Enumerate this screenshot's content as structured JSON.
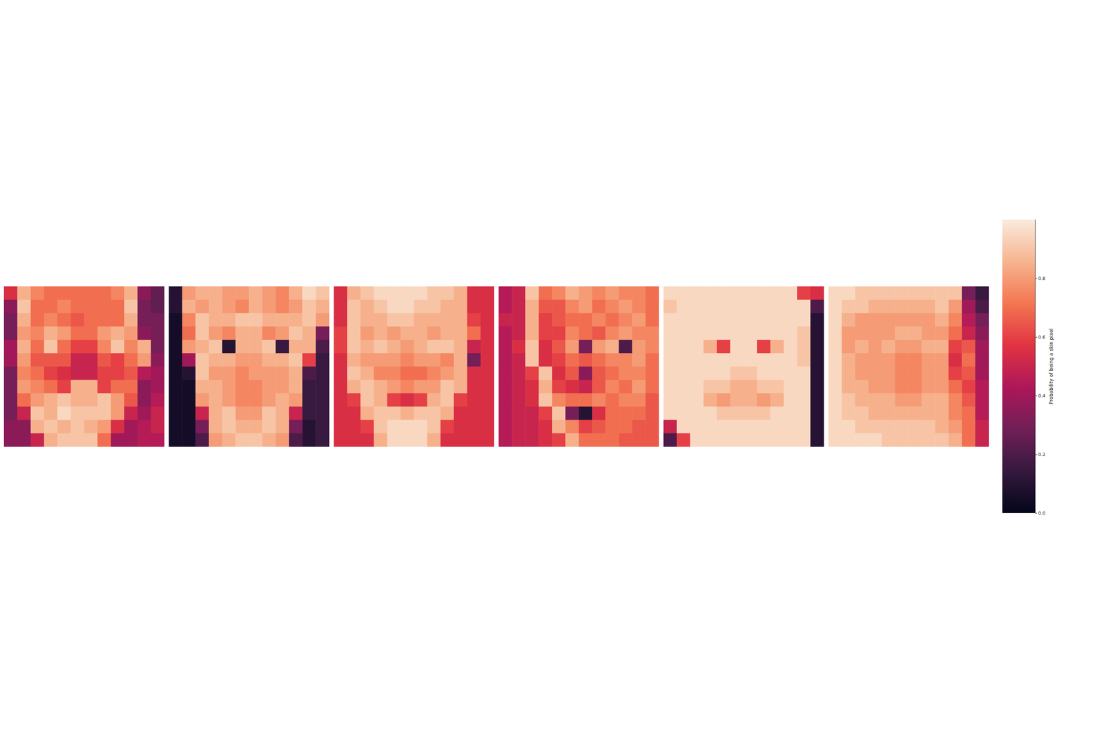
{
  "chart_data": {
    "type": "heatmap",
    "tick_labels": false,
    "heatmaps": [
      {
        "cells": [
          [
            0.55,
            0.85,
            0.75,
            0.7,
            0.7,
            0.7,
            0.7,
            0.7,
            0.75,
            0.85,
            0.35,
            0.25
          ],
          [
            0.35,
            0.9,
            0.7,
            0.7,
            0.75,
            0.7,
            0.7,
            0.7,
            0.7,
            0.9,
            0.3,
            0.25
          ],
          [
            0.3,
            0.85,
            0.7,
            0.75,
            0.7,
            0.65,
            0.7,
            0.7,
            0.7,
            0.85,
            0.3,
            0.3
          ],
          [
            0.3,
            0.8,
            0.75,
            0.85,
            0.8,
            0.7,
            0.7,
            0.8,
            0.85,
            0.8,
            0.35,
            0.3
          ],
          [
            0.4,
            0.85,
            0.7,
            0.9,
            0.7,
            0.6,
            0.6,
            0.75,
            0.9,
            0.75,
            0.85,
            0.3
          ],
          [
            0.4,
            0.8,
            0.65,
            0.65,
            0.65,
            0.5,
            0.5,
            0.65,
            0.6,
            0.7,
            0.8,
            0.35
          ],
          [
            0.3,
            0.75,
            0.7,
            0.6,
            0.55,
            0.5,
            0.5,
            0.6,
            0.6,
            0.65,
            0.45,
            0.4
          ],
          [
            0.3,
            0.8,
            0.75,
            0.7,
            0.6,
            0.85,
            0.85,
            0.6,
            0.7,
            0.7,
            0.35,
            0.4
          ],
          [
            0.3,
            0.7,
            0.8,
            0.85,
            0.9,
            0.85,
            0.85,
            0.9,
            0.8,
            0.65,
            0.35,
            0.45
          ],
          [
            0.3,
            0.5,
            0.9,
            0.85,
            0.95,
            0.9,
            0.9,
            0.9,
            0.8,
            0.5,
            0.4,
            0.5
          ],
          [
            0.35,
            0.35,
            0.85,
            0.9,
            0.85,
            0.9,
            0.85,
            0.8,
            0.55,
            0.4,
            0.45,
            0.5
          ],
          [
            0.35,
            0.35,
            0.5,
            0.85,
            0.9,
            0.9,
            0.9,
            0.7,
            0.4,
            0.4,
            0.45,
            0.45
          ]
        ]
      },
      {
        "cells": [
          [
            0.1,
            0.8,
            0.85,
            0.85,
            0.8,
            0.8,
            0.85,
            0.8,
            0.75,
            0.85,
            0.95,
            0.9
          ],
          [
            0.1,
            0.85,
            0.8,
            0.85,
            0.8,
            0.75,
            0.85,
            0.8,
            0.75,
            0.8,
            0.9,
            0.85
          ],
          [
            0.05,
            0.75,
            0.9,
            0.85,
            0.85,
            0.9,
            0.9,
            0.85,
            0.85,
            0.85,
            0.9,
            0.8
          ],
          [
            0.05,
            0.7,
            0.9,
            0.8,
            0.75,
            0.85,
            0.85,
            0.75,
            0.8,
            0.9,
            0.85,
            0.3
          ],
          [
            0.05,
            0.8,
            0.85,
            0.9,
            0.1,
            0.85,
            0.85,
            0.9,
            0.15,
            0.85,
            0.85,
            0.2
          ],
          [
            0.05,
            0.4,
            0.9,
            0.85,
            0.85,
            0.8,
            0.8,
            0.85,
            0.85,
            0.9,
            0.6,
            0.15
          ],
          [
            0.05,
            0.1,
            0.9,
            0.8,
            0.8,
            0.75,
            0.8,
            0.8,
            0.8,
            0.85,
            0.2,
            0.15
          ],
          [
            0.05,
            0.05,
            0.85,
            0.85,
            0.8,
            0.75,
            0.75,
            0.8,
            0.8,
            0.85,
            0.15,
            0.15
          ],
          [
            0.05,
            0.05,
            0.8,
            0.85,
            0.8,
            0.75,
            0.75,
            0.8,
            0.85,
            0.8,
            0.15,
            0.15
          ],
          [
            0.05,
            0.05,
            0.5,
            0.85,
            0.9,
            0.8,
            0.8,
            0.9,
            0.85,
            0.5,
            0.15,
            0.15
          ],
          [
            0.05,
            0.05,
            0.3,
            0.85,
            0.9,
            0.85,
            0.85,
            0.9,
            0.85,
            0.3,
            0.1,
            0.15
          ],
          [
            0.05,
            0.05,
            0.2,
            0.8,
            0.85,
            0.9,
            0.9,
            0.85,
            0.8,
            0.2,
            0.1,
            0.15
          ]
        ]
      },
      {
        "cells": [
          [
            0.55,
            0.85,
            0.9,
            0.95,
            0.95,
            0.95,
            0.95,
            0.9,
            0.9,
            0.85,
            0.55,
            0.55
          ],
          [
            0.55,
            0.9,
            0.85,
            0.9,
            0.95,
            0.95,
            0.9,
            0.9,
            0.85,
            0.85,
            0.55,
            0.55
          ],
          [
            0.55,
            0.9,
            0.85,
            0.85,
            0.9,
            0.9,
            0.85,
            0.85,
            0.85,
            0.85,
            0.6,
            0.55
          ],
          [
            0.6,
            0.9,
            0.8,
            0.85,
            0.8,
            0.85,
            0.85,
            0.8,
            0.85,
            0.85,
            0.7,
            0.55
          ],
          [
            0.6,
            0.9,
            0.85,
            0.9,
            0.85,
            0.8,
            0.85,
            0.9,
            0.9,
            0.85,
            0.5,
            0.55
          ],
          [
            0.55,
            0.85,
            0.8,
            0.8,
            0.8,
            0.75,
            0.8,
            0.8,
            0.75,
            0.85,
            0.3,
            0.55
          ],
          [
            0.55,
            0.9,
            0.85,
            0.75,
            0.75,
            0.7,
            0.7,
            0.75,
            0.8,
            0.85,
            0.55,
            0.55
          ],
          [
            0.55,
            0.85,
            0.9,
            0.85,
            0.8,
            0.75,
            0.8,
            0.8,
            0.9,
            0.85,
            0.55,
            0.55
          ],
          [
            0.55,
            0.6,
            0.9,
            0.85,
            0.6,
            0.55,
            0.6,
            0.85,
            0.9,
            0.6,
            0.55,
            0.55
          ],
          [
            0.55,
            0.55,
            0.85,
            0.9,
            0.9,
            0.85,
            0.9,
            0.9,
            0.85,
            0.55,
            0.55,
            0.55
          ],
          [
            0.55,
            0.55,
            0.6,
            0.9,
            0.95,
            0.95,
            0.95,
            0.9,
            0.6,
            0.55,
            0.55,
            0.55
          ],
          [
            0.55,
            0.55,
            0.55,
            0.85,
            0.95,
            0.95,
            0.95,
            0.85,
            0.55,
            0.55,
            0.55,
            0.55
          ]
        ]
      },
      {
        "cells": [
          [
            0.45,
            0.5,
            0.9,
            0.7,
            0.75,
            0.85,
            0.8,
            0.75,
            0.8,
            0.75,
            0.75,
            0.7
          ],
          [
            0.45,
            0.5,
            0.85,
            0.65,
            0.65,
            0.75,
            0.8,
            0.7,
            0.75,
            0.8,
            0.75,
            0.7
          ],
          [
            0.5,
            0.5,
            0.85,
            0.6,
            0.65,
            0.7,
            0.7,
            0.75,
            0.7,
            0.75,
            0.8,
            0.7
          ],
          [
            0.45,
            0.5,
            0.85,
            0.6,
            0.6,
            0.75,
            0.7,
            0.65,
            0.75,
            0.8,
            0.75,
            0.75
          ],
          [
            0.45,
            0.55,
            0.9,
            0.55,
            0.65,
            0.8,
            0.3,
            0.8,
            0.85,
            0.2,
            0.8,
            0.75
          ],
          [
            0.45,
            0.5,
            0.9,
            0.55,
            0.6,
            0.7,
            0.65,
            0.7,
            0.75,
            0.75,
            0.8,
            0.7
          ],
          [
            0.45,
            0.5,
            0.6,
            0.9,
            0.55,
            0.65,
            0.35,
            0.65,
            0.7,
            0.75,
            0.75,
            0.7
          ],
          [
            0.45,
            0.5,
            0.55,
            0.85,
            0.6,
            0.55,
            0.5,
            0.65,
            0.75,
            0.7,
            0.8,
            0.7
          ],
          [
            0.45,
            0.5,
            0.55,
            0.9,
            0.75,
            0.7,
            0.7,
            0.75,
            0.7,
            0.75,
            0.75,
            0.65
          ],
          [
            0.45,
            0.5,
            0.5,
            0.6,
            0.9,
            0.3,
            0.1,
            0.55,
            0.7,
            0.7,
            0.7,
            0.65
          ],
          [
            0.45,
            0.5,
            0.5,
            0.55,
            0.85,
            0.75,
            0.6,
            0.65,
            0.7,
            0.7,
            0.65,
            0.65
          ],
          [
            0.45,
            0.5,
            0.5,
            0.55,
            0.6,
            0.85,
            0.7,
            0.7,
            0.7,
            0.65,
            0.65,
            0.65
          ]
        ]
      },
      {
        "cells": [
          [
            0.95,
            0.95,
            0.95,
            0.95,
            0.95,
            0.95,
            0.95,
            0.95,
            0.95,
            0.95,
            0.6,
            0.55
          ],
          [
            0.9,
            0.95,
            0.95,
            0.95,
            0.95,
            0.95,
            0.95,
            0.95,
            0.95,
            0.95,
            0.95,
            0.2
          ],
          [
            0.95,
            0.95,
            0.95,
            0.95,
            0.95,
            0.95,
            0.95,
            0.95,
            0.95,
            0.95,
            0.95,
            0.1
          ],
          [
            0.95,
            0.95,
            0.95,
            0.95,
            0.95,
            0.95,
            0.95,
            0.95,
            0.95,
            0.95,
            0.9,
            0.1
          ],
          [
            0.95,
            0.95,
            0.95,
            0.85,
            0.6,
            0.95,
            0.95,
            0.6,
            0.85,
            0.95,
            0.9,
            0.1
          ],
          [
            0.95,
            0.95,
            0.95,
            0.95,
            0.95,
            0.95,
            0.95,
            0.95,
            0.95,
            0.95,
            0.9,
            0.1
          ],
          [
            0.95,
            0.95,
            0.95,
            0.95,
            0.95,
            0.9,
            0.9,
            0.95,
            0.95,
            0.95,
            0.95,
            0.1
          ],
          [
            0.95,
            0.95,
            0.95,
            0.9,
            0.9,
            0.85,
            0.85,
            0.9,
            0.9,
            0.95,
            0.95,
            0.1
          ],
          [
            0.95,
            0.95,
            0.95,
            0.85,
            0.8,
            0.85,
            0.85,
            0.8,
            0.85,
            0.95,
            0.95,
            0.1
          ],
          [
            0.95,
            0.95,
            0.95,
            0.95,
            0.9,
            0.9,
            0.9,
            0.9,
            0.95,
            0.95,
            0.95,
            0.1
          ],
          [
            0.5,
            0.95,
            0.95,
            0.95,
            0.95,
            0.95,
            0.95,
            0.95,
            0.95,
            0.95,
            0.95,
            0.1
          ],
          [
            0.2,
            0.6,
            0.95,
            0.95,
            0.95,
            0.95,
            0.95,
            0.95,
            0.95,
            0.95,
            0.95,
            0.1
          ]
        ]
      },
      {
        "cells": [
          [
            0.95,
            0.95,
            0.9,
            0.9,
            0.9,
            0.9,
            0.9,
            0.9,
            0.9,
            0.9,
            0.3,
            0.15
          ],
          [
            0.95,
            0.9,
            0.9,
            0.85,
            0.85,
            0.85,
            0.85,
            0.85,
            0.9,
            0.8,
            0.4,
            0.2
          ],
          [
            0.95,
            0.85,
            0.8,
            0.8,
            0.8,
            0.8,
            0.8,
            0.8,
            0.85,
            0.75,
            0.45,
            0.3
          ],
          [
            0.95,
            0.8,
            0.8,
            0.8,
            0.8,
            0.85,
            0.85,
            0.8,
            0.8,
            0.7,
            0.5,
            0.35
          ],
          [
            0.95,
            0.8,
            0.85,
            0.8,
            0.85,
            0.8,
            0.8,
            0.85,
            0.85,
            0.6,
            0.65,
            0.4
          ],
          [
            0.95,
            0.85,
            0.8,
            0.8,
            0.8,
            0.75,
            0.75,
            0.8,
            0.8,
            0.55,
            0.7,
            0.4
          ],
          [
            0.95,
            0.85,
            0.8,
            0.8,
            0.8,
            0.75,
            0.75,
            0.8,
            0.8,
            0.6,
            0.65,
            0.4
          ],
          [
            0.95,
            0.85,
            0.85,
            0.8,
            0.8,
            0.75,
            0.75,
            0.8,
            0.8,
            0.7,
            0.6,
            0.45
          ],
          [
            0.95,
            0.9,
            0.85,
            0.85,
            0.85,
            0.8,
            0.8,
            0.85,
            0.85,
            0.75,
            0.65,
            0.45
          ],
          [
            0.95,
            0.9,
            0.9,
            0.85,
            0.85,
            0.85,
            0.85,
            0.85,
            0.85,
            0.75,
            0.7,
            0.45
          ],
          [
            0.95,
            0.95,
            0.9,
            0.9,
            0.9,
            0.9,
            0.9,
            0.9,
            0.85,
            0.8,
            0.7,
            0.5
          ],
          [
            0.95,
            0.95,
            0.95,
            0.95,
            0.9,
            0.9,
            0.9,
            0.9,
            0.9,
            0.85,
            0.7,
            0.5
          ]
        ]
      }
    ],
    "colorbar": {
      "label": "Probability of being a skin pixel",
      "range": [
        0,
        1
      ],
      "ticks": [
        {
          "value": 0,
          "label": "0.0"
        },
        {
          "value": 0.2,
          "label": "0.2"
        },
        {
          "value": 0.4,
          "label": "0.4"
        },
        {
          "value": 0.6,
          "label": "0.6"
        },
        {
          "value": 0.8,
          "label": "0.8"
        }
      ]
    }
  }
}
